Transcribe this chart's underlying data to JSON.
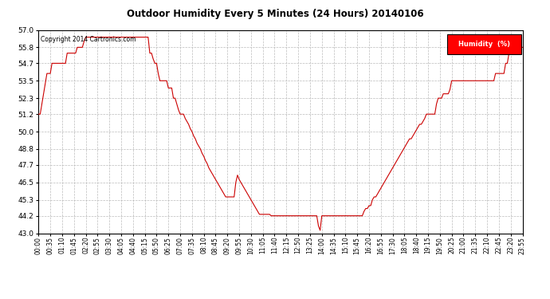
{
  "title": "Outdoor Humidity Every 5 Minutes (24 Hours) 20140106",
  "copyright": "Copyright 2014 Cartronics.com",
  "legend_label": "Humidity  (%)",
  "legend_bg": "#ff0000",
  "legend_text_color": "#ffffff",
  "line_color": "#cc0000",
  "bg_color": "#ffffff",
  "grid_color": "#bbbbbb",
  "ylim": [
    43.0,
    57.0
  ],
  "yticks": [
    43.0,
    44.2,
    45.3,
    46.5,
    47.7,
    48.8,
    50.0,
    51.2,
    52.3,
    53.5,
    54.7,
    55.8,
    57.0
  ],
  "humidity_values": [
    51.2,
    51.2,
    51.9,
    52.6,
    53.3,
    54.0,
    54.0,
    54.0,
    54.7,
    54.7,
    54.7,
    54.7,
    54.7,
    54.7,
    54.7,
    54.7,
    54.7,
    55.4,
    55.4,
    55.4,
    55.4,
    55.4,
    55.4,
    55.8,
    55.8,
    55.8,
    55.8,
    56.2,
    56.5,
    56.5,
    56.5,
    56.5,
    56.5,
    56.5,
    56.5,
    56.5,
    56.5,
    56.5,
    56.5,
    56.5,
    56.5,
    56.5,
    56.5,
    56.5,
    56.5,
    56.5,
    56.5,
    56.5,
    56.5,
    56.5,
    56.5,
    56.5,
    56.5,
    56.5,
    56.5,
    56.5,
    56.5,
    56.5,
    56.5,
    56.5,
    56.5,
    56.5,
    56.5,
    56.5,
    56.5,
    56.5,
    55.4,
    55.4,
    55.0,
    54.7,
    54.7,
    54.0,
    53.5,
    53.5,
    53.5,
    53.5,
    53.5,
    53.0,
    53.0,
    53.0,
    52.3,
    52.3,
    51.9,
    51.5,
    51.2,
    51.2,
    51.2,
    50.9,
    50.7,
    50.5,
    50.2,
    50.0,
    49.7,
    49.5,
    49.2,
    49.0,
    48.8,
    48.5,
    48.3,
    48.0,
    47.8,
    47.5,
    47.3,
    47.1,
    46.9,
    46.7,
    46.5,
    46.3,
    46.1,
    45.9,
    45.7,
    45.5,
    45.5,
    45.5,
    45.5,
    45.5,
    45.5,
    46.5,
    47.0,
    46.7,
    46.5,
    46.3,
    46.1,
    45.9,
    45.7,
    45.5,
    45.3,
    45.1,
    44.9,
    44.7,
    44.5,
    44.3,
    44.3,
    44.3,
    44.3,
    44.3,
    44.3,
    44.3,
    44.2,
    44.2,
    44.2,
    44.2,
    44.2,
    44.2,
    44.2,
    44.2,
    44.2,
    44.2,
    44.2,
    44.2,
    44.2,
    44.2,
    44.2,
    44.2,
    44.2,
    44.2,
    44.2,
    44.2,
    44.2,
    44.2,
    44.2,
    44.2,
    44.2,
    44.2,
    44.2,
    44.2,
    43.5,
    43.2,
    44.2,
    44.2,
    44.2,
    44.2,
    44.2,
    44.2,
    44.2,
    44.2,
    44.2,
    44.2,
    44.2,
    44.2,
    44.2,
    44.2,
    44.2,
    44.2,
    44.2,
    44.2,
    44.2,
    44.2,
    44.2,
    44.2,
    44.2,
    44.2,
    44.2,
    44.5,
    44.7,
    44.7,
    44.9,
    44.9,
    45.3,
    45.5,
    45.5,
    45.7,
    45.9,
    46.1,
    46.3,
    46.5,
    46.7,
    46.9,
    47.1,
    47.3,
    47.5,
    47.7,
    47.9,
    48.1,
    48.3,
    48.5,
    48.7,
    48.9,
    49.1,
    49.3,
    49.5,
    49.5,
    49.7,
    49.9,
    50.1,
    50.3,
    50.5,
    50.5,
    50.7,
    50.9,
    51.2,
    51.2,
    51.2,
    51.2,
    51.2,
    51.2,
    51.9,
    52.3,
    52.3,
    52.3,
    52.6,
    52.6,
    52.6,
    52.6,
    52.9,
    53.5,
    53.5,
    53.5,
    53.5,
    53.5,
    53.5,
    53.5,
    53.5,
    53.5,
    53.5,
    53.5,
    53.5,
    53.5,
    53.5,
    53.5,
    53.5,
    53.5,
    53.5,
    53.5,
    53.5,
    53.5,
    53.5,
    53.5,
    53.5,
    53.5,
    53.5,
    54.0,
    54.0,
    54.0,
    54.0,
    54.0,
    54.0,
    54.7,
    54.7,
    55.4,
    55.8,
    55.8,
    55.8,
    55.8,
    55.8,
    55.8,
    55.8,
    55.8
  ]
}
